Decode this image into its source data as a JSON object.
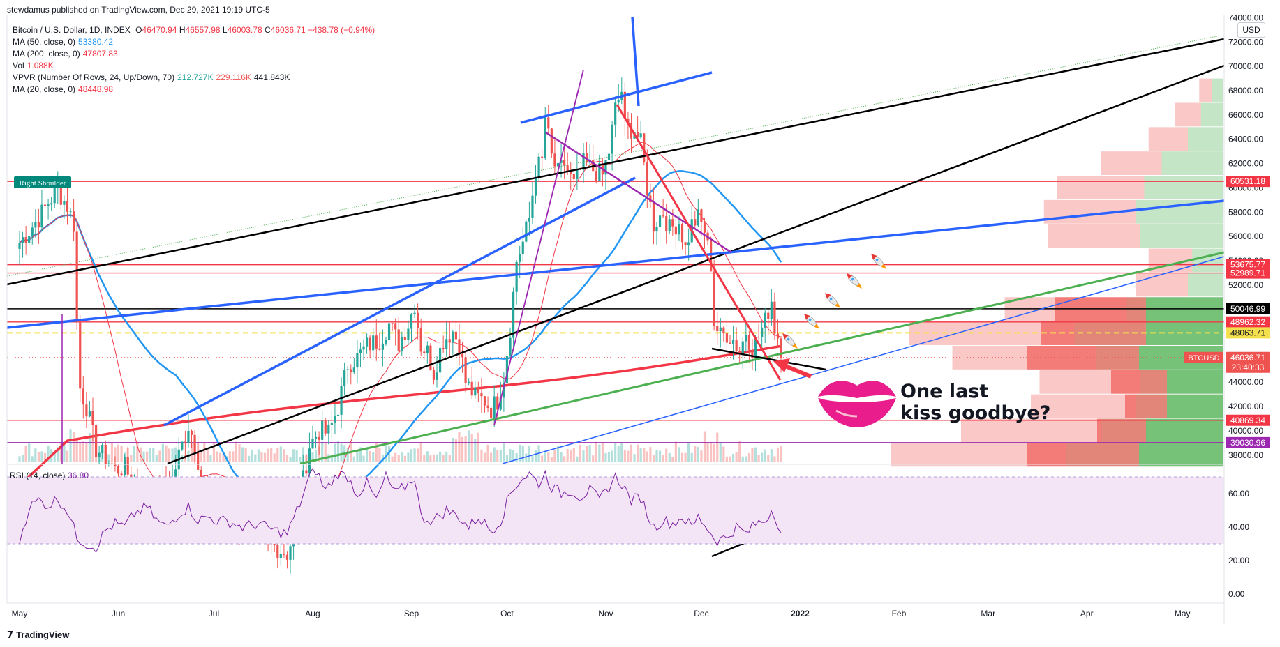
{
  "header": {
    "published": "stewdamus published on TradingView.com, Dec 29, 2021 19:19 UTC-5"
  },
  "legend": {
    "symbol": "Bitcoin / U.S. Dollar, 1D, INDEX",
    "ohlc": {
      "o_label": "O",
      "o": "46470.94",
      "h_label": "H",
      "h": "46557.98",
      "l_label": "L",
      "l": "46003.78",
      "c_label": "C",
      "c": "46036.71",
      "change": "−438.78 (−0.94%)"
    },
    "indicators": [
      {
        "label": "MA (50, close, 0)",
        "value": "53380.42",
        "color": "#2196f3"
      },
      {
        "label": "MA (200, close, 0)",
        "value": "47807.83",
        "color": "#f23645"
      },
      {
        "label": "Vol",
        "value": "1.088K",
        "color": "#f23645"
      },
      {
        "label": "MA (20, close, 0)",
        "value": "48448.98",
        "color": "#f23645"
      }
    ],
    "vpvr": {
      "label": "VPVR (Number Of Rows, 24, Up/Down, 70)",
      "up": "212.727K",
      "down": "229.116K",
      "total": "441.843K"
    }
  },
  "colors": {
    "up": "#26a69a",
    "down": "#ef5350",
    "ma50": "#2196f3",
    "ma200": "#f23645",
    "trend_blue": "#2962ff",
    "trend_black": "#000000",
    "trend_green": "#4caf50",
    "purple": "#9c27b0",
    "hline_red": "#f23645",
    "rsi_line": "#7b1fa2",
    "rsi_band": "#f3e5f5"
  },
  "usd_label": "USD",
  "right_shoulder_label": "Right Shoulder",
  "annotation": {
    "line1": "One last",
    "line2": "kiss goodbye?",
    "icon": "lips-icon",
    "rockets": "rocket-icon"
  },
  "brand": "TradingView",
  "chart_data": [
    {
      "type": "candlestick",
      "y_ticks": [
        "38000.00",
        "40000.00",
        "42000.00",
        "44000.00",
        "46000.00",
        "48000.00",
        "50000.00",
        "52000.00",
        "54000.00",
        "56000.00",
        "58000.00",
        "60000.00",
        "62000.00",
        "64000.00",
        "66000.00",
        "68000.00",
        "70000.00",
        "72000.00",
        "74000.00"
      ],
      "ylim": [
        37300,
        74200
      ],
      "x_ticks": [
        {
          "label": "May",
          "day": 0
        },
        {
          "label": "Jun",
          "day": 31
        },
        {
          "label": "Jul",
          "day": 61
        },
        {
          "label": "Aug",
          "day": 92
        },
        {
          "label": "Sep",
          "day": 123
        },
        {
          "label": "Oct",
          "day": 153
        },
        {
          "label": "Nov",
          "day": 184
        },
        {
          "label": "Dec",
          "day": 214
        },
        {
          "label": "2022",
          "day": 245
        },
        {
          "label": "Feb",
          "day": 276
        },
        {
          "label": "Mar",
          "day": 304
        },
        {
          "label": "Apr",
          "day": 335
        },
        {
          "label": "May",
          "day": 365
        }
      ],
      "price_key_points": [
        [
          0,
          55500
        ],
        [
          6,
          57500
        ],
        [
          9,
          58800
        ],
        [
          12,
          59800
        ],
        [
          15,
          58500
        ],
        [
          17,
          57000
        ],
        [
          18,
          49000
        ],
        [
          19,
          43500
        ],
        [
          21,
          42000
        ],
        [
          24,
          38500
        ],
        [
          27,
          37800
        ],
        [
          30,
          36800
        ],
        [
          33,
          37000
        ],
        [
          36,
          35500
        ],
        [
          40,
          33000
        ],
        [
          45,
          35500
        ],
        [
          48,
          36000
        ],
        [
          50,
          38000
        ],
        [
          53,
          40500
        ],
        [
          55,
          39000
        ],
        [
          58,
          34800
        ],
        [
          62,
          33500
        ],
        [
          66,
          32500
        ],
        [
          70,
          32000
        ],
        [
          75,
          31800
        ],
        [
          80,
          30500
        ],
        [
          84,
          29900
        ],
        [
          86,
          31500
        ],
        [
          88,
          34500
        ],
        [
          91,
          38800
        ],
        [
          94,
          40000
        ],
        [
          97,
          39800
        ],
        [
          100,
          42000
        ],
        [
          103,
          45500
        ],
        [
          106,
          46000
        ],
        [
          109,
          47000
        ],
        [
          113,
          47500
        ],
        [
          116,
          48800
        ],
        [
          119,
          47200
        ],
        [
          122,
          48800
        ],
        [
          124,
          50500
        ],
        [
          126,
          47000
        ],
        [
          128,
          46500
        ],
        [
          130,
          44800
        ],
        [
          133,
          47500
        ],
        [
          136,
          48200
        ],
        [
          138,
          47200
        ],
        [
          140,
          44000
        ],
        [
          143,
          42800
        ],
        [
          146,
          42500
        ],
        [
          148,
          41800
        ],
        [
          150,
          42500
        ],
        [
          152,
          44500
        ],
        [
          154,
          48500
        ],
        [
          156,
          54000
        ],
        [
          158,
          55500
        ],
        [
          160,
          57500
        ],
        [
          162,
          61500
        ],
        [
          164,
          62200
        ],
        [
          165,
          65800
        ],
        [
          167,
          62500
        ],
        [
          169,
          61200
        ],
        [
          171,
          62000
        ],
        [
          174,
          60200
        ],
        [
          177,
          62000
        ],
        [
          180,
          61500
        ],
        [
          183,
          61000
        ],
        [
          185,
          63000
        ],
        [
          187,
          66500
        ],
        [
          189,
          68000
        ],
        [
          190,
          65000
        ],
        [
          193,
          64800
        ],
        [
          195,
          63600
        ],
        [
          197,
          60000
        ],
        [
          199,
          57000
        ],
        [
          202,
          58000
        ],
        [
          204,
          56600
        ],
        [
          207,
          57200
        ],
        [
          209,
          55000
        ],
        [
          211,
          57000
        ],
        [
          213,
          57500
        ],
        [
          215,
          56500
        ],
        [
          217,
          53700
        ],
        [
          218,
          48900
        ],
        [
          220,
          47800
        ],
        [
          222,
          48000
        ],
        [
          224,
          47500
        ],
        [
          226,
          46500
        ],
        [
          228,
          48200
        ],
        [
          230,
          46800
        ],
        [
          232,
          47800
        ],
        [
          234,
          49000
        ],
        [
          236,
          50800
        ],
        [
          237,
          48500
        ],
        [
          238,
          47800
        ],
        [
          239,
          46036
        ]
      ],
      "volume_note": "per-candle volume shown as bars at bottom of price pane",
      "horizontal_lines": [
        {
          "price": 60531.18,
          "label": "60531.18",
          "color": "#f23645"
        },
        {
          "price": 53675.77,
          "label": "53675.77",
          "color": "#f23645"
        },
        {
          "price": 52989.71,
          "label": "52989.71",
          "color": "#f23645"
        },
        {
          "price": 50046.99,
          "label": "50046.99",
          "color": "#000000"
        },
        {
          "price": 48962.32,
          "label": "48962.32",
          "color": "#f23645"
        },
        {
          "price": 48063.71,
          "label": "48063.71",
          "color": "#f4e04d",
          "dashed": true
        },
        {
          "price": 40869.34,
          "label": "40869.34",
          "color": "#f23645"
        },
        {
          "price": 39030.96,
          "label": "39030.96",
          "color": "#9c27b0"
        }
      ],
      "last_price": {
        "label": "BTCUSD",
        "price": "46036.71",
        "countdown": "23:40:33"
      },
      "volume_profile": [
        {
          "price": 38000,
          "up": 180,
          "down": 200
        },
        {
          "price": 40000,
          "up": 140,
          "down": 160
        },
        {
          "price": 42000,
          "up": 100,
          "down": 120
        },
        {
          "price": 44000,
          "up": 95,
          "down": 115
        },
        {
          "price": 46000,
          "up": 145,
          "down": 165
        },
        {
          "price": 48000,
          "up": 170,
          "down": 190
        },
        {
          "price": 50000,
          "up": 110,
          "down": 140
        },
        {
          "price": 52000,
          "up": 40,
          "down": 60
        },
        {
          "price": 54000,
          "up": 35,
          "down": 50
        },
        {
          "price": 56000,
          "up": 95,
          "down": 105
        },
        {
          "price": 58000,
          "up": 100,
          "down": 105
        },
        {
          "price": 60000,
          "up": 90,
          "down": 100
        },
        {
          "price": 62000,
          "up": 70,
          "down": 70
        },
        {
          "price": 64000,
          "up": 40,
          "down": 45
        },
        {
          "price": 66000,
          "up": 25,
          "down": 30
        },
        {
          "price": 68000,
          "up": 12,
          "down": 15
        }
      ]
    },
    {
      "type": "line",
      "title": "RSI (14, close)",
      "value": "36.80",
      "y_ticks": [
        "0.00",
        "20.00",
        "40.00",
        "60.00"
      ],
      "ylim": [
        -5,
        75
      ],
      "band": [
        30,
        70
      ],
      "rsi_key_points": [
        [
          0,
          32
        ],
        [
          3,
          52
        ],
        [
          6,
          56
        ],
        [
          9,
          53
        ],
        [
          12,
          57
        ],
        [
          15,
          50
        ],
        [
          18,
          34
        ],
        [
          21,
          30
        ],
        [
          24,
          28
        ],
        [
          27,
          38
        ],
        [
          30,
          42
        ],
        [
          33,
          40
        ],
        [
          36,
          48
        ],
        [
          40,
          52
        ],
        [
          43,
          44
        ],
        [
          46,
          40
        ],
        [
          50,
          48
        ],
        [
          53,
          52
        ],
        [
          56,
          44
        ],
        [
          59,
          46
        ],
        [
          62,
          44
        ],
        [
          66,
          43
        ],
        [
          70,
          40
        ],
        [
          75,
          42
        ],
        [
          80,
          38
        ],
        [
          84,
          36
        ],
        [
          88,
          54
        ],
        [
          91,
          70
        ],
        [
          93,
          74
        ],
        [
          96,
          62
        ],
        [
          100,
          72
        ],
        [
          103,
          70
        ],
        [
          106,
          60
        ],
        [
          109,
          66
        ],
        [
          112,
          56
        ],
        [
          115,
          70
        ],
        [
          118,
          60
        ],
        [
          121,
          64
        ],
        [
          124,
          70
        ],
        [
          126,
          46
        ],
        [
          130,
          44
        ],
        [
          134,
          50
        ],
        [
          138,
          46
        ],
        [
          141,
          40
        ],
        [
          144,
          46
        ],
        [
          148,
          38
        ],
        [
          151,
          44
        ],
        [
          154,
          60
        ],
        [
          157,
          68
        ],
        [
          160,
          72
        ],
        [
          163,
          66
        ],
        [
          165,
          72
        ],
        [
          167,
          64
        ],
        [
          170,
          60
        ],
        [
          173,
          62
        ],
        [
          176,
          58
        ],
        [
          179,
          62
        ],
        [
          182,
          56
        ],
        [
          185,
          64
        ],
        [
          187,
          70
        ],
        [
          189,
          66
        ],
        [
          192,
          56
        ],
        [
          195,
          58
        ],
        [
          197,
          48
        ],
        [
          199,
          40
        ],
        [
          202,
          44
        ],
        [
          205,
          42
        ],
        [
          208,
          46
        ],
        [
          211,
          40
        ],
        [
          213,
          46
        ],
        [
          215,
          42
        ],
        [
          217,
          36
        ],
        [
          219,
          32
        ],
        [
          222,
          34
        ],
        [
          225,
          40
        ],
        [
          228,
          36
        ],
        [
          231,
          42
        ],
        [
          234,
          44
        ],
        [
          236,
          50
        ],
        [
          237,
          48
        ],
        [
          239,
          36.8
        ]
      ]
    }
  ]
}
